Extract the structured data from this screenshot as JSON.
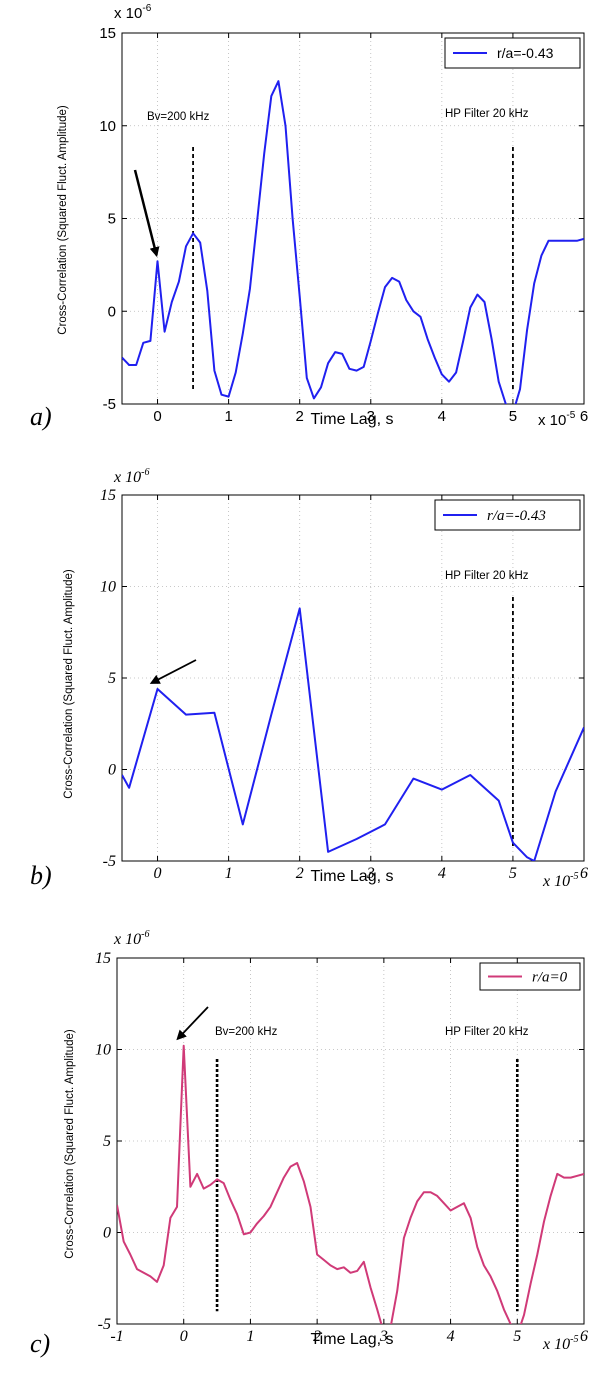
{
  "chart_data": [
    {
      "panel": "a)",
      "type": "line",
      "xlabel": "Time Lag, s",
      "ylabel": "Cross-Correlation (Squared Fluct. Amplitude)",
      "x_multiplier": "x 10",
      "x_multiplier_exp": "-5",
      "y_multiplier": "x 10",
      "y_multiplier_exp": "-6",
      "xlim": [
        -0.5,
        6
      ],
      "ylim": [
        -5,
        15
      ],
      "xticks": [
        0,
        1,
        2,
        3,
        4,
        5,
        6
      ],
      "yticks": [
        -5,
        0,
        5,
        10,
        15
      ],
      "xtick_labels": [
        "0",
        "1",
        "2",
        "3",
        "4",
        "5",
        "6"
      ],
      "ytick_labels": [
        "-5",
        "0",
        "5",
        "10",
        "15"
      ],
      "grid": true,
      "legend_position": "top-right",
      "color": "#2020f0",
      "series": [
        {
          "name": "r/a=-0.43",
          "x": [
            -0.5,
            -0.4,
            -0.3,
            -0.2,
            -0.1,
            0.0,
            0.1,
            0.2,
            0.3,
            0.4,
            0.5,
            0.6,
            0.7,
            0.8,
            0.9,
            1.0,
            1.1,
            1.2,
            1.3,
            1.4,
            1.5,
            1.6,
            1.7,
            1.8,
            1.9,
            2.0,
            2.1,
            2.2,
            2.3,
            2.4,
            2.5,
            2.6,
            2.7,
            2.8,
            2.9,
            3.0,
            3.1,
            3.2,
            3.3,
            3.4,
            3.5,
            3.6,
            3.7,
            3.8,
            3.9,
            4.0,
            4.1,
            4.2,
            4.3,
            4.4,
            4.5,
            4.6,
            4.7,
            4.8,
            4.9,
            5.0,
            5.1,
            5.2,
            5.3,
            5.4,
            5.5,
            5.6,
            5.7,
            5.8,
            5.9,
            6.0
          ],
          "y": [
            -2.5,
            -2.9,
            -2.9,
            -1.7,
            -1.6,
            2.7,
            -1.1,
            0.5,
            1.6,
            3.5,
            4.2,
            3.7,
            1.1,
            -3.2,
            -4.5,
            -4.6,
            -3.3,
            -1.2,
            1.2,
            4.8,
            8.5,
            11.6,
            12.4,
            10.0,
            5.0,
            0.8,
            -3.6,
            -4.7,
            -4.1,
            -2.8,
            -2.2,
            -2.3,
            -3.1,
            -3.2,
            -3.0,
            -1.6,
            -0.1,
            1.3,
            1.8,
            1.6,
            0.6,
            0.0,
            -0.3,
            -1.5,
            -2.5,
            -3.4,
            -3.8,
            -3.3,
            -1.6,
            0.2,
            0.9,
            0.5,
            -1.5,
            -3.8,
            -5.0,
            -5.5,
            -4.2,
            -1.0,
            1.5,
            3.0,
            3.8,
            3.8,
            3.8,
            3.8,
            3.8,
            3.9
          ]
        }
      ],
      "vlines": [
        0.5,
        5.0
      ],
      "annotations": [
        "Bv=200 kHz",
        "HP Filter 20 kHz"
      ],
      "arrow_target": {
        "x": 0.0,
        "y": 2.7
      }
    },
    {
      "panel": "b)",
      "type": "line",
      "xlabel": "Time Lag, s",
      "ylabel": "Cross-Correlation (Squared Fluct. Amplitude)",
      "x_multiplier": "x 10",
      "x_multiplier_exp": "-5",
      "y_multiplier": "x 10",
      "y_multiplier_exp": "-6",
      "xlim": [
        -0.5,
        6
      ],
      "ylim": [
        -5,
        15
      ],
      "xticks": [
        0,
        1,
        2,
        3,
        4,
        5,
        6
      ],
      "yticks": [
        -5,
        0,
        5,
        10,
        15
      ],
      "xtick_labels": [
        "0",
        "1",
        "2",
        "3",
        "4",
        "5",
        "6"
      ],
      "ytick_labels": [
        "-5",
        "0",
        "5",
        "10",
        "15"
      ],
      "grid": true,
      "legend_position": "top-right",
      "color": "#2020f0",
      "series": [
        {
          "name": "r/a=-0.43",
          "x": [
            -0.5,
            -0.4,
            0.0,
            0.4,
            0.8,
            1.2,
            1.6,
            2.0,
            2.4,
            2.8,
            3.2,
            3.6,
            4.0,
            4.4,
            4.8,
            5.0,
            5.2,
            5.3,
            5.6,
            6.0
          ],
          "y": [
            -0.3,
            -1.0,
            4.4,
            3.0,
            3.1,
            -3.0,
            3.0,
            8.8,
            -4.5,
            -3.8,
            -3.0,
            -0.5,
            -1.1,
            -0.3,
            -1.7,
            -4.0,
            -4.8,
            -5.0,
            -1.2,
            2.3
          ]
        }
      ],
      "vlines": [
        5.0
      ],
      "annotations": [
        "HP Filter 20 kHz"
      ],
      "arrow_target": {
        "x": 0.0,
        "y": 4.4
      }
    },
    {
      "panel": "c)",
      "type": "line",
      "xlabel": "Time Lag, s",
      "ylabel": "Cross-Correlation (Squared Fluct. Amplitude)",
      "x_multiplier": "x 10",
      "x_multiplier_exp": "-5",
      "y_multiplier": "x 10",
      "y_multiplier_exp": "-6",
      "xlim": [
        -1,
        6
      ],
      "ylim": [
        -5,
        15
      ],
      "xticks": [
        -1,
        0,
        1,
        2,
        3,
        4,
        5,
        6
      ],
      "yticks": [
        -5,
        0,
        5,
        10,
        15
      ],
      "xtick_labels": [
        "-1",
        "0",
        "1",
        "2",
        "3",
        "4",
        "5",
        "6"
      ],
      "ytick_labels": [
        "-5",
        "0",
        "5",
        "10",
        "15"
      ],
      "grid": true,
      "legend_position": "top-right",
      "color": "#d03a78",
      "series": [
        {
          "name": "r/a=0",
          "x": [
            -1.0,
            -0.9,
            -0.8,
            -0.7,
            -0.6,
            -0.5,
            -0.4,
            -0.3,
            -0.2,
            -0.1,
            0.0,
            0.1,
            0.2,
            0.3,
            0.4,
            0.5,
            0.6,
            0.7,
            0.8,
            0.9,
            1.0,
            1.1,
            1.2,
            1.3,
            1.4,
            1.5,
            1.6,
            1.7,
            1.8,
            1.9,
            2.0,
            2.1,
            2.2,
            2.3,
            2.4,
            2.5,
            2.6,
            2.7,
            2.8,
            2.9,
            3.0,
            3.1,
            3.2,
            3.3,
            3.4,
            3.5,
            3.6,
            3.7,
            3.8,
            3.9,
            4.0,
            4.1,
            4.2,
            4.3,
            4.4,
            4.5,
            4.6,
            4.7,
            4.8,
            4.9,
            5.0,
            5.1,
            5.2,
            5.3,
            5.4,
            5.5,
            5.6,
            5.7,
            5.8,
            5.9,
            6.0
          ],
          "y": [
            1.5,
            -0.5,
            -1.2,
            -2.0,
            -2.2,
            -2.4,
            -2.7,
            -1.8,
            0.8,
            1.4,
            10.2,
            2.5,
            3.2,
            2.4,
            2.6,
            2.9,
            2.7,
            1.8,
            1.0,
            -0.1,
            0.0,
            0.5,
            0.9,
            1.4,
            2.2,
            3.0,
            3.6,
            3.8,
            2.8,
            1.4,
            -1.2,
            -1.5,
            -1.8,
            -2.0,
            -1.9,
            -2.2,
            -2.1,
            -1.6,
            -3.0,
            -4.2,
            -5.5,
            -5.2,
            -3.2,
            -0.3,
            0.8,
            1.7,
            2.2,
            2.2,
            2.0,
            1.6,
            1.2,
            1.4,
            1.6,
            0.8,
            -0.8,
            -1.8,
            -2.4,
            -3.2,
            -4.2,
            -5.0,
            -5.6,
            -4.5,
            -2.8,
            -1.2,
            0.6,
            2.0,
            3.2,
            3.0,
            3.0,
            3.1,
            3.2
          ]
        }
      ],
      "vlines": [
        0.5,
        5.0
      ],
      "annotations": [
        "Bv=200 kHz",
        "HP Filter 20 kHz"
      ],
      "arrow_target": {
        "x": 0.0,
        "y": 10.2
      }
    }
  ]
}
